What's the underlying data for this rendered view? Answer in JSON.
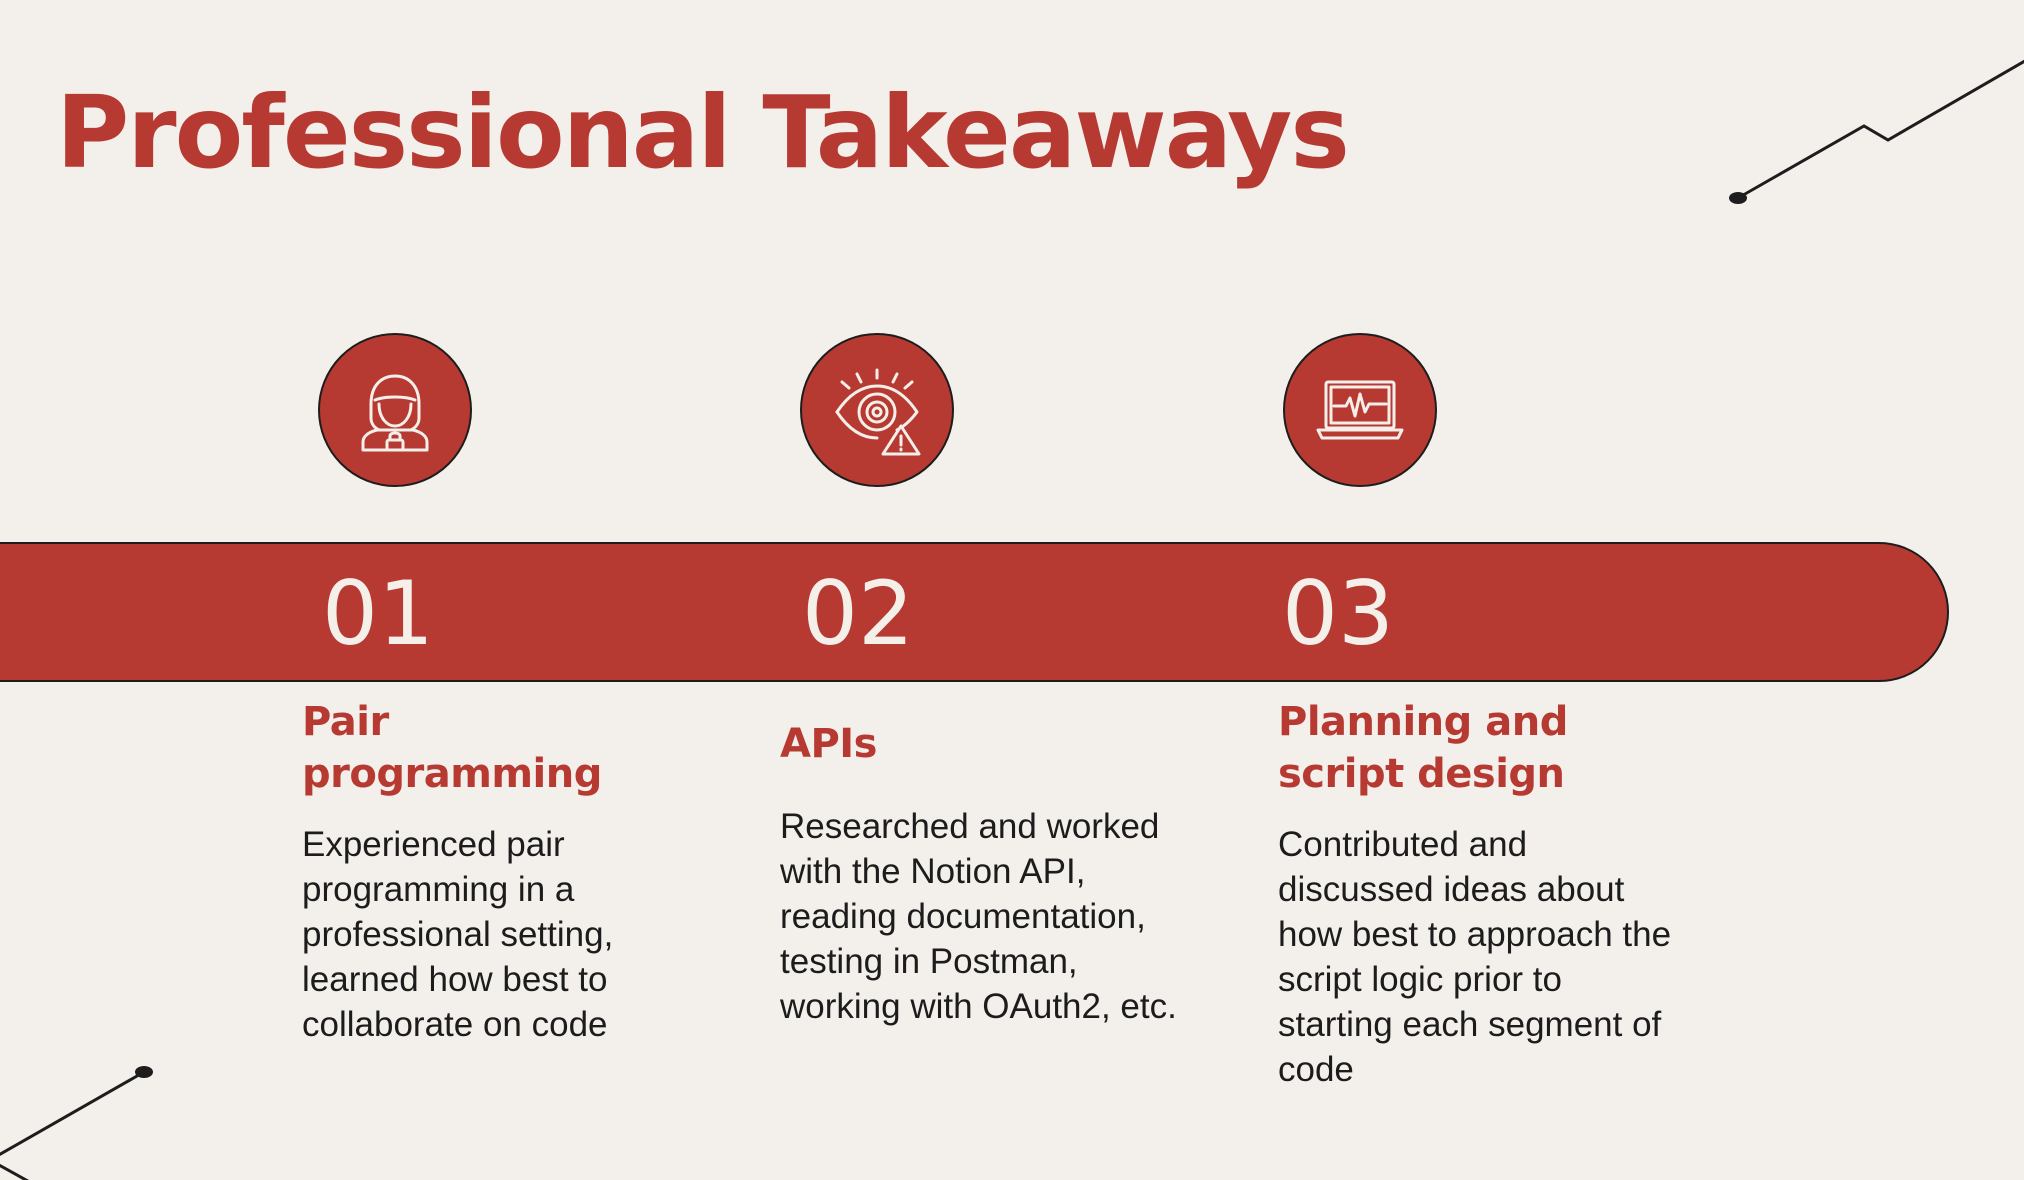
{
  "title": "Professional Takeaways",
  "colors": {
    "accent": "#b73a32",
    "background": "#f3efeb",
    "text": "#1c1c1c",
    "band_text": "#f5efe9"
  },
  "items": [
    {
      "number": "01",
      "icon": "hacker-icon",
      "heading_lines": [
        "Pair",
        "programming"
      ],
      "description_lines": [
        "Experienced pair",
        "programming in a",
        "professional setting,",
        "learned how best to",
        "collaborate on code"
      ]
    },
    {
      "number": "02",
      "icon": "eye-warning-icon",
      "heading_lines": [
        "APIs"
      ],
      "description_lines": [
        "Researched and worked",
        "with the Notion API,",
        "reading documentation,",
        "testing in Postman,",
        "working with OAuth2, etc."
      ]
    },
    {
      "number": "03",
      "icon": "laptop-heartbeat-icon",
      "heading_lines": [
        "Planning and",
        "script design"
      ],
      "description_lines": [
        "Contributed and",
        "discussed ideas about",
        "how best to approach the",
        "script logic prior to",
        "starting each segment of",
        "code"
      ]
    }
  ]
}
